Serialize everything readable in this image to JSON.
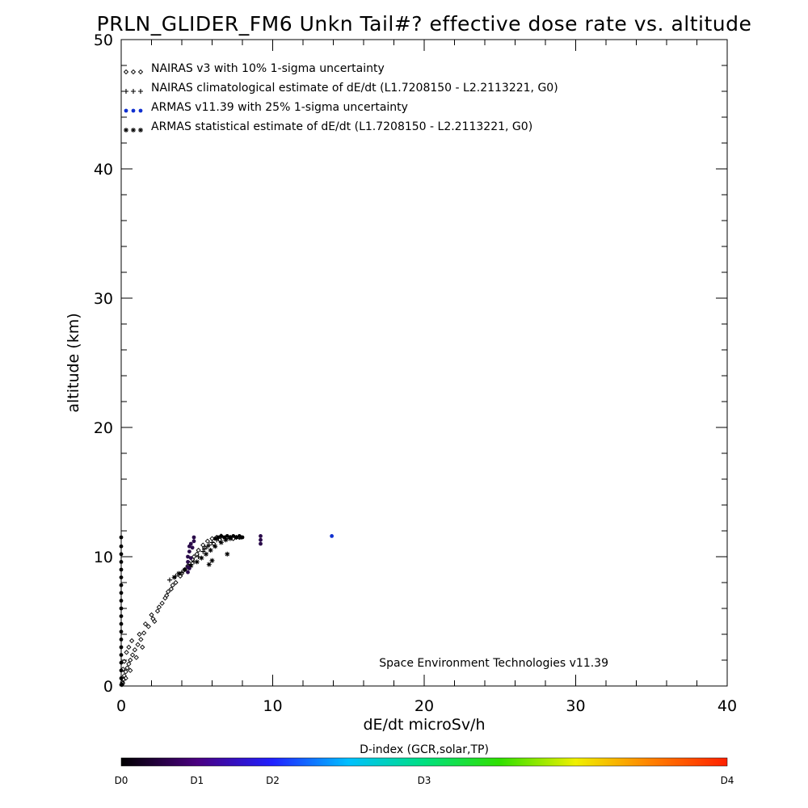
{
  "chart_data": {
    "type": "scatter",
    "title": "PRLN_GLIDER_FM6 Unkn Tail#? effective dose rate vs. altitude",
    "xlabel": "dE/dt microSv/h",
    "ylabel": "altitude (km)",
    "xlim": [
      0,
      40
    ],
    "ylim": [
      0,
      50
    ],
    "xticks": [
      "0",
      "10",
      "20",
      "30",
      "40"
    ],
    "yticks": [
      "0",
      "10",
      "20",
      "30",
      "40",
      "50"
    ],
    "credit": "Space Environment Technologies v11.39",
    "legend_placement": "top-left",
    "legend": [
      {
        "marker": "diamond",
        "color": "#000000",
        "label": "NAIRAS v3 with 10% 1-sigma uncertainty"
      },
      {
        "marker": "plus",
        "color": "#000000",
        "label": "NAIRAS climatological estimate of dE/dt (L1.7208150 - L2.2113221, G0)"
      },
      {
        "marker": "dot",
        "color": "#1030d0",
        "label": "ARMAS v11.39 with 25% 1-sigma uncertainty"
      },
      {
        "marker": "asterisk",
        "color": "#000000",
        "label": "ARMAS statistical estimate of dE/dt (L1.7208150 - L2.2113221, G0)"
      }
    ],
    "series": [
      {
        "marker": "diamond",
        "color": "#000000",
        "points": [
          [
            0.1,
            0.2
          ],
          [
            0.15,
            0.5
          ],
          [
            0.2,
            0.8
          ],
          [
            0.3,
            1.1
          ],
          [
            0.4,
            1.4
          ],
          [
            0.5,
            1.7
          ],
          [
            0.6,
            2.0
          ],
          [
            0.75,
            2.4
          ],
          [
            0.9,
            2.8
          ],
          [
            1.1,
            3.2
          ],
          [
            1.3,
            3.6
          ],
          [
            1.5,
            4.1
          ],
          [
            1.8,
            4.6
          ],
          [
            2.1,
            5.2
          ],
          [
            2.4,
            5.8
          ],
          [
            2.7,
            6.4
          ],
          [
            3.0,
            7.0
          ],
          [
            3.3,
            7.5
          ],
          [
            3.6,
            8.0
          ],
          [
            3.9,
            8.5
          ],
          [
            4.2,
            9.0
          ],
          [
            4.5,
            9.5
          ],
          [
            4.8,
            10.0
          ],
          [
            5.1,
            10.5
          ],
          [
            5.4,
            10.9
          ],
          [
            5.7,
            11.2
          ],
          [
            6.0,
            11.4
          ],
          [
            6.3,
            11.5
          ],
          [
            6.6,
            11.6
          ],
          [
            7.0,
            11.5
          ],
          [
            7.4,
            11.4
          ],
          [
            7.8,
            11.5
          ],
          [
            0.05,
            0.1
          ],
          [
            0.08,
            0.3
          ],
          [
            0.12,
            1.3
          ],
          [
            0.2,
            1.9
          ],
          [
            0.35,
            2.6
          ],
          [
            0.5,
            3.0
          ],
          [
            0.7,
            3.5
          ],
          [
            1.2,
            4.0
          ],
          [
            1.6,
            4.8
          ],
          [
            2.0,
            5.5
          ],
          [
            2.5,
            6.1
          ],
          [
            2.9,
            6.8
          ],
          [
            3.4,
            7.8
          ],
          [
            4.0,
            8.7
          ],
          [
            4.4,
            9.3
          ],
          [
            4.7,
            9.8
          ],
          [
            5.0,
            10.2
          ],
          [
            5.5,
            10.7
          ],
          [
            6.1,
            11.0
          ],
          [
            6.5,
            11.3
          ],
          [
            0.3,
            0.6
          ],
          [
            0.6,
            1.2
          ],
          [
            1.0,
            2.2
          ],
          [
            1.4,
            3.0
          ],
          [
            2.2,
            5.0
          ],
          [
            3.1,
            7.3
          ]
        ]
      },
      {
        "marker": "plus",
        "color": "#000000",
        "points": [
          [
            3.2,
            8.2
          ],
          [
            3.6,
            8.5
          ],
          [
            4.0,
            8.8
          ],
          [
            4.4,
            9.2
          ],
          [
            4.8,
            9.6
          ],
          [
            5.1,
            10.0
          ],
          [
            5.4,
            10.4
          ],
          [
            5.7,
            10.8
          ],
          [
            6.0,
            11.1
          ],
          [
            6.3,
            11.3
          ],
          [
            6.6,
            11.5
          ],
          [
            6.9,
            11.5
          ],
          [
            7.2,
            11.5
          ],
          [
            7.5,
            11.5
          ],
          [
            7.8,
            11.5
          ],
          [
            5.5,
            10.6
          ],
          [
            5.8,
            10.9
          ],
          [
            4.6,
            9.4
          ]
        ]
      },
      {
        "marker": "asterisk",
        "color": "#000000",
        "points": [
          [
            3.5,
            8.4
          ],
          [
            3.8,
            8.7
          ],
          [
            4.2,
            9.0
          ],
          [
            4.6,
            9.3
          ],
          [
            5.0,
            9.6
          ],
          [
            5.3,
            9.9
          ],
          [
            5.6,
            10.2
          ],
          [
            5.9,
            10.5
          ],
          [
            6.2,
            10.8
          ],
          [
            6.6,
            11.1
          ],
          [
            6.9,
            11.3
          ],
          [
            7.2,
            11.4
          ],
          [
            7.6,
            11.5
          ],
          [
            7.9,
            11.5
          ],
          [
            5.8,
            9.4
          ],
          [
            6.0,
            9.7
          ],
          [
            7.0,
            10.2
          ]
        ]
      },
      {
        "marker": "dot",
        "color": "#000000",
        "points": [
          [
            0.0,
            0.1
          ],
          [
            0.0,
            0.6
          ],
          [
            0.0,
            1.2
          ],
          [
            0.0,
            1.8
          ],
          [
            0.0,
            2.4
          ],
          [
            0.0,
            3.0
          ],
          [
            0.0,
            3.6
          ],
          [
            0.0,
            4.2
          ],
          [
            0.0,
            4.8
          ],
          [
            0.0,
            5.4
          ],
          [
            0.0,
            6.0
          ],
          [
            0.0,
            6.6
          ],
          [
            0.0,
            7.2
          ],
          [
            0.0,
            7.8
          ],
          [
            0.0,
            8.4
          ],
          [
            0.0,
            9.0
          ],
          [
            0.0,
            9.6
          ],
          [
            0.0,
            10.2
          ],
          [
            0.0,
            10.8
          ],
          [
            0.0,
            11.5
          ],
          [
            6.4,
            11.5
          ],
          [
            6.6,
            11.6
          ],
          [
            6.8,
            11.5
          ],
          [
            7.0,
            11.6
          ],
          [
            7.2,
            11.5
          ],
          [
            7.4,
            11.6
          ],
          [
            7.6,
            11.5
          ],
          [
            7.8,
            11.6
          ],
          [
            8.0,
            11.5
          ],
          [
            6.2,
            11.4
          ]
        ]
      },
      {
        "marker": "dot",
        "color": "#2a0b4a",
        "points": [
          [
            4.4,
            8.8
          ],
          [
            4.4,
            9.2
          ],
          [
            4.4,
            9.6
          ],
          [
            4.4,
            10.0
          ],
          [
            4.5,
            10.4
          ],
          [
            4.5,
            10.8
          ],
          [
            4.6,
            11.0
          ],
          [
            4.8,
            11.2
          ],
          [
            4.8,
            11.5
          ],
          [
            4.7,
            10.7
          ],
          [
            4.6,
            9.9
          ],
          [
            4.5,
            9.1
          ],
          [
            9.2,
            11.0
          ],
          [
            9.2,
            11.3
          ],
          [
            9.2,
            11.6
          ]
        ]
      },
      {
        "marker": "dot",
        "color": "#1030d0",
        "points": [
          [
            13.9,
            11.6
          ]
        ]
      }
    ],
    "colorbar": {
      "title": "D-index (GCR,solar,TP)",
      "labels": [
        {
          "text": "D0",
          "pos": 0.0
        },
        {
          "text": "D1",
          "pos": 0.125
        },
        {
          "text": "D2",
          "pos": 0.25
        },
        {
          "text": "D3",
          "pos": 0.5
        },
        {
          "text": "D4",
          "pos": 1.0
        }
      ],
      "colors": [
        "#000000",
        "#4a0080",
        "#2020ff",
        "#00c0ff",
        "#00e080",
        "#30e000",
        "#f0f000",
        "#ff8000",
        "#ff2000"
      ]
    }
  }
}
